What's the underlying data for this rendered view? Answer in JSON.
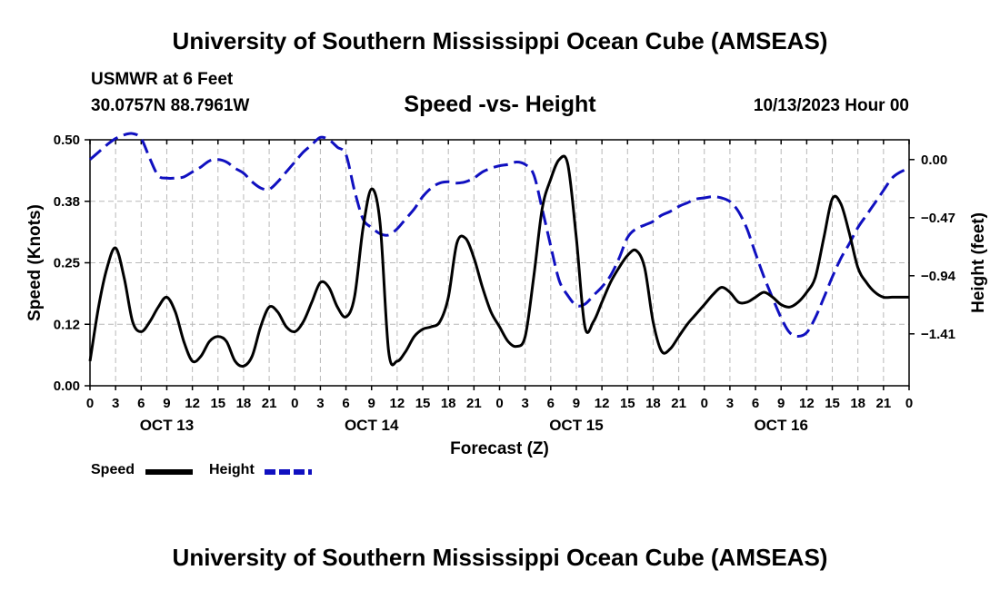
{
  "header": {
    "title": "University of Southern Mississippi Ocean Cube (AMSEAS)",
    "station": "USMWR at 6 Feet",
    "coords": "30.0757N  88.7961W",
    "subtitle": "Speed -vs- Height",
    "datetime": "10/13/2023 Hour 00"
  },
  "footer": {
    "title": "University of Southern Mississippi Ocean Cube (AMSEAS)"
  },
  "legend": {
    "speed_label": "Speed",
    "height_label": "Height"
  },
  "colors": {
    "speed": "#000000",
    "height": "#1010c0",
    "grid": "#b8b8b8"
  },
  "chart_data": {
    "type": "line",
    "title": "Speed -vs- Height",
    "xlabel": "Forecast (Z)",
    "ylabel": "Speed (Knots)",
    "y2label": "Height (feet)",
    "xlim": [
      0,
      96
    ],
    "ylim": [
      0,
      0.5
    ],
    "y2lim": [
      -1.83,
      0.16
    ],
    "grid": true,
    "legend_position": "bottom-left",
    "x_ticks": [
      0,
      3,
      6,
      9,
      12,
      15,
      18,
      21,
      24,
      27,
      30,
      33,
      36,
      39,
      42,
      45,
      48,
      51,
      54,
      57,
      60,
      63,
      66,
      69,
      72,
      75,
      78,
      81,
      84,
      87,
      90,
      93,
      96
    ],
    "x_tick_labels": [
      "0",
      "3",
      "6",
      "9",
      "12",
      "15",
      "18",
      "21",
      "0",
      "3",
      "6",
      "9",
      "12",
      "15",
      "18",
      "21",
      "0",
      "3",
      "6",
      "9",
      "12",
      "15",
      "18",
      "21",
      "0",
      "3",
      "6",
      "9",
      "12",
      "15",
      "18",
      "21",
      "0"
    ],
    "y_ticks": [
      0,
      0.125,
      0.25,
      0.375,
      0.5
    ],
    "y_tick_labels": [
      "0.00",
      "0.12",
      "0.25",
      "0.38",
      "0.50"
    ],
    "y2_ticks": [
      0.0,
      -0.47,
      -0.94,
      -1.41
    ],
    "y2_tick_labels": [
      "0.00",
      "−0.47",
      "−0.94",
      "−1.41"
    ],
    "day_labels": [
      {
        "x": 9,
        "label": "OCT 13"
      },
      {
        "x": 33,
        "label": "OCT 14"
      },
      {
        "x": 57,
        "label": "OCT 15"
      },
      {
        "x": 81,
        "label": "OCT 16"
      }
    ],
    "series": [
      {
        "name": "Speed",
        "axis": "left",
        "style": "solid",
        "points": [
          [
            0,
            0.05
          ],
          [
            1,
            0.16
          ],
          [
            2,
            0.24
          ],
          [
            3,
            0.28
          ],
          [
            4,
            0.22
          ],
          [
            5,
            0.13
          ],
          [
            6,
            0.11
          ],
          [
            7,
            0.13
          ],
          [
            8,
            0.16
          ],
          [
            9,
            0.18
          ],
          [
            10,
            0.15
          ],
          [
            11,
            0.09
          ],
          [
            12,
            0.05
          ],
          [
            13,
            0.06
          ],
          [
            14,
            0.09
          ],
          [
            15,
            0.1
          ],
          [
            16,
            0.09
          ],
          [
            17,
            0.05
          ],
          [
            18,
            0.04
          ],
          [
            19,
            0.06
          ],
          [
            20,
            0.12
          ],
          [
            21,
            0.16
          ],
          [
            22,
            0.15
          ],
          [
            23,
            0.12
          ],
          [
            24,
            0.11
          ],
          [
            25,
            0.13
          ],
          [
            26,
            0.17
          ],
          [
            27,
            0.21
          ],
          [
            28,
            0.2
          ],
          [
            29,
            0.16
          ],
          [
            30,
            0.14
          ],
          [
            31,
            0.18
          ],
          [
            32,
            0.32
          ],
          [
            33,
            0.4
          ],
          [
            34,
            0.33
          ],
          [
            35,
            0.07
          ],
          [
            36,
            0.05
          ],
          [
            37,
            0.07
          ],
          [
            38,
            0.1
          ],
          [
            39,
            0.115
          ],
          [
            40,
            0.12
          ],
          [
            41,
            0.13
          ],
          [
            42,
            0.18
          ],
          [
            43,
            0.29
          ],
          [
            44,
            0.3
          ],
          [
            45,
            0.26
          ],
          [
            46,
            0.2
          ],
          [
            47,
            0.15
          ],
          [
            48,
            0.12
          ],
          [
            49,
            0.09
          ],
          [
            50,
            0.08
          ],
          [
            51,
            0.1
          ],
          [
            52,
            0.22
          ],
          [
            53,
            0.36
          ],
          [
            54,
            0.42
          ],
          [
            55,
            0.46
          ],
          [
            56,
            0.45
          ],
          [
            57,
            0.3
          ],
          [
            58,
            0.12
          ],
          [
            59,
            0.13
          ],
          [
            60,
            0.17
          ],
          [
            61,
            0.21
          ],
          [
            62,
            0.24
          ],
          [
            63,
            0.265
          ],
          [
            64,
            0.275
          ],
          [
            65,
            0.24
          ],
          [
            66,
            0.13
          ],
          [
            67,
            0.07
          ],
          [
            68,
            0.075
          ],
          [
            69,
            0.1
          ],
          [
            70,
            0.125
          ],
          [
            71,
            0.145
          ],
          [
            72,
            0.165
          ],
          [
            73,
            0.185
          ],
          [
            74,
            0.2
          ],
          [
            75,
            0.19
          ],
          [
            76,
            0.17
          ],
          [
            77,
            0.17
          ],
          [
            78,
            0.18
          ],
          [
            79,
            0.19
          ],
          [
            80,
            0.18
          ],
          [
            81,
            0.165
          ],
          [
            82,
            0.16
          ],
          [
            83,
            0.17
          ],
          [
            84,
            0.19
          ],
          [
            85,
            0.22
          ],
          [
            86,
            0.3
          ],
          [
            87,
            0.38
          ],
          [
            88,
            0.37
          ],
          [
            89,
            0.31
          ],
          [
            90,
            0.24
          ],
          [
            91,
            0.21
          ],
          [
            92,
            0.19
          ],
          [
            93,
            0.18
          ],
          [
            94,
            0.18
          ],
          [
            95,
            0.18
          ],
          [
            96,
            0.18
          ]
        ]
      },
      {
        "name": "Height",
        "axis": "right",
        "style": "dashed",
        "points": [
          [
            0,
            0.0
          ],
          [
            1,
            0.06
          ],
          [
            2,
            0.12
          ],
          [
            3,
            0.17
          ],
          [
            4,
            0.2
          ],
          [
            5,
            0.21
          ],
          [
            6,
            0.17
          ],
          [
            7,
            0.01
          ],
          [
            8,
            -0.13
          ],
          [
            9,
            -0.15
          ],
          [
            10,
            -0.15
          ],
          [
            11,
            -0.14
          ],
          [
            12,
            -0.1
          ],
          [
            13,
            -0.06
          ],
          [
            14,
            -0.01
          ],
          [
            15,
            0.0
          ],
          [
            16,
            -0.02
          ],
          [
            17,
            -0.07
          ],
          [
            18,
            -0.11
          ],
          [
            19,
            -0.18
          ],
          [
            20,
            -0.23
          ],
          [
            21,
            -0.24
          ],
          [
            22,
            -0.18
          ],
          [
            23,
            -0.1
          ],
          [
            24,
            -0.02
          ],
          [
            25,
            0.06
          ],
          [
            26,
            0.12
          ],
          [
            27,
            0.18
          ],
          [
            28,
            0.16
          ],
          [
            29,
            0.1
          ],
          [
            30,
            0.04
          ],
          [
            31,
            -0.25
          ],
          [
            32,
            -0.48
          ],
          [
            33,
            -0.55
          ],
          [
            34,
            -0.6
          ],
          [
            35,
            -0.61
          ],
          [
            36,
            -0.56
          ],
          [
            37,
            -0.48
          ],
          [
            38,
            -0.4
          ],
          [
            39,
            -0.3
          ],
          [
            40,
            -0.23
          ],
          [
            41,
            -0.19
          ],
          [
            42,
            -0.18
          ],
          [
            43,
            -0.19
          ],
          [
            44,
            -0.18
          ],
          [
            45,
            -0.15
          ],
          [
            46,
            -0.1
          ],
          [
            47,
            -0.07
          ],
          [
            48,
            -0.05
          ],
          [
            49,
            -0.04
          ],
          [
            50,
            -0.02
          ],
          [
            51,
            -0.04
          ],
          [
            52,
            -0.12
          ],
          [
            53,
            -0.4
          ],
          [
            54,
            -0.7
          ],
          [
            55,
            -0.98
          ],
          [
            56,
            -1.1
          ],
          [
            57,
            -1.18
          ],
          [
            58,
            -1.17
          ],
          [
            59,
            -1.1
          ],
          [
            60,
            -1.03
          ],
          [
            61,
            -0.94
          ],
          [
            62,
            -0.8
          ],
          [
            63,
            -0.63
          ],
          [
            64,
            -0.56
          ],
          [
            65,
            -0.53
          ],
          [
            66,
            -0.5
          ],
          [
            67,
            -0.45
          ],
          [
            68,
            -0.42
          ],
          [
            69,
            -0.38
          ],
          [
            70,
            -0.35
          ],
          [
            71,
            -0.32
          ],
          [
            72,
            -0.31
          ],
          [
            73,
            -0.3
          ],
          [
            74,
            -0.31
          ],
          [
            75,
            -0.34
          ],
          [
            76,
            -0.42
          ],
          [
            77,
            -0.56
          ],
          [
            78,
            -0.76
          ],
          [
            79,
            -0.95
          ],
          [
            80,
            -1.12
          ],
          [
            81,
            -1.28
          ],
          [
            82,
            -1.4
          ],
          [
            83,
            -1.43
          ],
          [
            84,
            -1.4
          ],
          [
            85,
            -1.28
          ],
          [
            86,
            -1.12
          ],
          [
            87,
            -0.95
          ],
          [
            88,
            -0.8
          ],
          [
            89,
            -0.68
          ],
          [
            90,
            -0.55
          ],
          [
            91,
            -0.45
          ],
          [
            92,
            -0.35
          ],
          [
            93,
            -0.25
          ],
          [
            94,
            -0.15
          ],
          [
            95,
            -0.1
          ],
          [
            96,
            -0.07
          ]
        ]
      }
    ]
  }
}
